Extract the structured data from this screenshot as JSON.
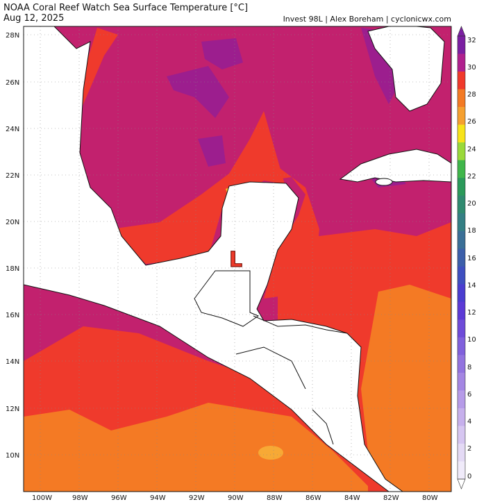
{
  "header": {
    "title": "NOAA Coral Reef Watch Sea Surface Temperature [°C]",
    "date": "Aug 12, 2025",
    "credit": "Invest 98L | Alex Boreham | cyclonicwx.com"
  },
  "map": {
    "lat_labels": [
      "28N",
      "26N",
      "24N",
      "22N",
      "20N",
      "18N",
      "16N",
      "14N",
      "12N",
      "10N"
    ],
    "lon_labels": [
      "100W",
      "98W",
      "96W",
      "94W",
      "92W",
      "90W",
      "88W",
      "86W",
      "84W",
      "82W",
      "80W"
    ],
    "low_marker": "L"
  },
  "colorbar": {
    "labels": [
      "32",
      "30",
      "28",
      "26",
      "24",
      "22",
      "20",
      "18",
      "16",
      "14",
      "12",
      "10",
      "8",
      "6",
      "4",
      "2",
      "0"
    ],
    "colors": [
      "#7b1fa2",
      "#b0208e",
      "#f0392b",
      "#f37a24",
      "#f5a030",
      "#f7e31a",
      "#9ad93a",
      "#3fb64a",
      "#2b9a5a",
      "#2f8a6f",
      "#347f84",
      "#3a6f97",
      "#3c5faa",
      "#3e4fc0",
      "#4a3dd0",
      "#5c3ad6",
      "#6e4bd9",
      "#8060dc",
      "#9273df",
      "#a486e3",
      "#b69be8",
      "#c6b0ec",
      "#d6c6f1",
      "#e4daf5",
      "#f0ebfa"
    ]
  }
}
